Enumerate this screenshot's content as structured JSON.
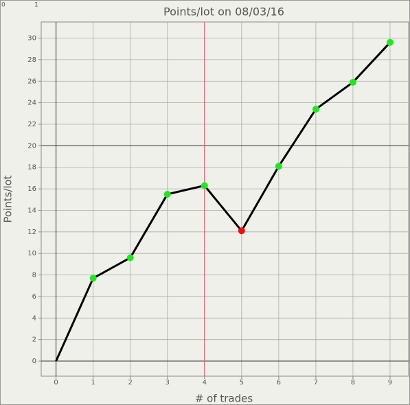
{
  "chart_data": {
    "type": "line",
    "title": "Points/lot on 08/03/16",
    "x_label": "# of trades",
    "y_label": "Points/lot",
    "corner_labels": [
      "0",
      "1"
    ],
    "x": [
      0,
      1,
      2,
      3,
      4,
      5,
      6,
      7,
      8,
      9
    ],
    "series": [
      {
        "name": "Points/lot",
        "color": "#000000",
        "values": [
          0,
          7.7,
          9.6,
          15.5,
          16.3,
          12.1,
          18.1,
          23.4,
          25.9,
          29.6
        ],
        "marker_colors": [
          null,
          "#22e622",
          "#22e622",
          "#22e622",
          "#22e622",
          "#ee1111",
          "#22e622",
          "#22e622",
          "#22e622",
          "#22e622"
        ]
      }
    ],
    "xlim": [
      -0.4,
      9.5
    ],
    "ylim": [
      -1.4,
      31.5
    ],
    "xticks": [
      0,
      1,
      2,
      3,
      4,
      5,
      6,
      7,
      8,
      9
    ],
    "yticks": [
      0,
      2,
      4,
      6,
      8,
      10,
      12,
      14,
      16,
      18,
      20,
      22,
      24,
      26,
      28,
      30
    ],
    "grid": true,
    "hlines": [
      {
        "value": 0,
        "color": "#333333"
      },
      {
        "value": 20,
        "color": "#333333"
      }
    ],
    "vlines": [
      {
        "value": 0,
        "color": "#333333"
      },
      {
        "value": 4,
        "color": "#e05068"
      }
    ]
  }
}
